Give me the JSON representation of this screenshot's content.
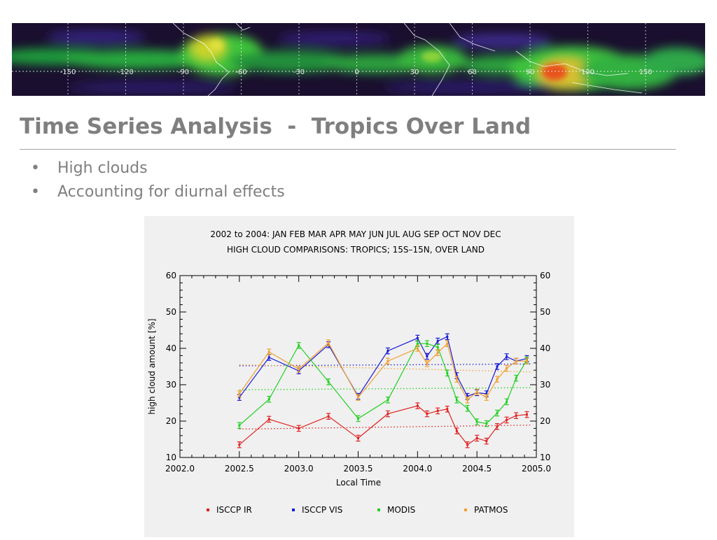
{
  "banner": {
    "icon": "cloud-amount-world-map",
    "longitude_labels": [
      "-150",
      "-120",
      "-90",
      "-60",
      "-30",
      "0",
      "30",
      "60",
      "90",
      "120",
      "150"
    ]
  },
  "slide": {
    "title": "Time Series Analysis  -  Tropics Over Land",
    "bullets": [
      "High clouds",
      "Accounting for diurnal effects"
    ],
    "title_color": "#7f7f7f"
  },
  "chart_data": {
    "type": "line",
    "title": "2002 to 2004: JAN FEB MAR APR MAY JUN JUL AUG SEP OCT NOV DEC",
    "subtitle": "HIGH CLOUD COMPARISONS: TROPICS; 15S–15N, OVER LAND",
    "xlabel": "Local Time",
    "ylabel": "high cloud amount [%]",
    "xlim": [
      2002.0,
      2005.0
    ],
    "ylim": [
      10,
      60
    ],
    "xticks": [
      "2002.0",
      "2002.5",
      "2003.0",
      "2003.5",
      "2004.0",
      "2004.5",
      "2005.0"
    ],
    "yticks": [
      "10",
      "20",
      "30",
      "40",
      "50",
      "60"
    ],
    "grid": false,
    "legend_position": "bottom",
    "series": [
      {
        "name": "ISCCP IR",
        "color": "#e02020",
        "x": [
          2002.5,
          2002.75,
          2003.0,
          2003.25,
          2003.5,
          2003.75,
          2004.0,
          2004.08,
          2004.17,
          2004.25,
          2004.33,
          2004.42,
          2004.5,
          2004.58,
          2004.67,
          2004.75,
          2004.83,
          2004.92
        ],
        "y": [
          13.5,
          20.5,
          18,
          21.3,
          15.3,
          22,
          24.2,
          22,
          22.8,
          23.3,
          17.3,
          13.5,
          15.3,
          14.5,
          18.5,
          20.3,
          21.5,
          21.8
        ],
        "mean_y0": 17.8,
        "mean_y1": 18.9
      },
      {
        "name": "ISCCP VIS",
        "color": "#1a1ad6",
        "x": [
          2002.5,
          2002.75,
          2003.0,
          2003.25,
          2003.5,
          2003.75,
          2004.0,
          2004.08,
          2004.17,
          2004.25,
          2004.33,
          2004.42,
          2004.5,
          2004.58,
          2004.67,
          2004.75,
          2004.83,
          2004.92
        ],
        "y": [
          26.5,
          37.5,
          33.8,
          41,
          26.8,
          39.3,
          42.8,
          37.8,
          42,
          43.2,
          32.5,
          26.8,
          27.8,
          27.5,
          35,
          37.7,
          36.5,
          37.2
        ],
        "mean_y0": 35.2,
        "mean_y1": 35.7
      },
      {
        "name": "MODIS",
        "color": "#22d022",
        "x": [
          2002.5,
          2002.75,
          2003.0,
          2003.25,
          2003.5,
          2003.75,
          2004.0,
          2004.08,
          2004.17,
          2004.25,
          2004.33,
          2004.42,
          2004.5,
          2004.58,
          2004.67,
          2004.75,
          2004.83,
          2004.92
        ],
        "y": [
          18.8,
          26,
          40.8,
          30.8,
          20.7,
          25.8,
          41.3,
          41.3,
          40.3,
          33.2,
          25.8,
          23.5,
          19.8,
          19.3,
          22.2,
          25.3,
          31.8,
          36.8
        ],
        "mean_y0": 28.6,
        "mean_y1": 29.2
      },
      {
        "name": "PATMOS",
        "color": "#f0a030",
        "x": [
          2002.5,
          2002.75,
          2003.0,
          2003.25,
          2003.5,
          2003.75,
          2004.0,
          2004.08,
          2004.17,
          2004.25,
          2004.33,
          2004.42,
          2004.5,
          2004.58,
          2004.67,
          2004.75,
          2004.83,
          2004.92
        ],
        "y": [
          27.5,
          39,
          34.3,
          41.5,
          26.5,
          36.5,
          40,
          35.8,
          38.8,
          41.3,
          31.5,
          25.8,
          28,
          26.5,
          31.5,
          34.5,
          36.5,
          36.5
        ],
        "mean_y0": 35.5,
        "mean_y1": 33.5
      }
    ]
  }
}
